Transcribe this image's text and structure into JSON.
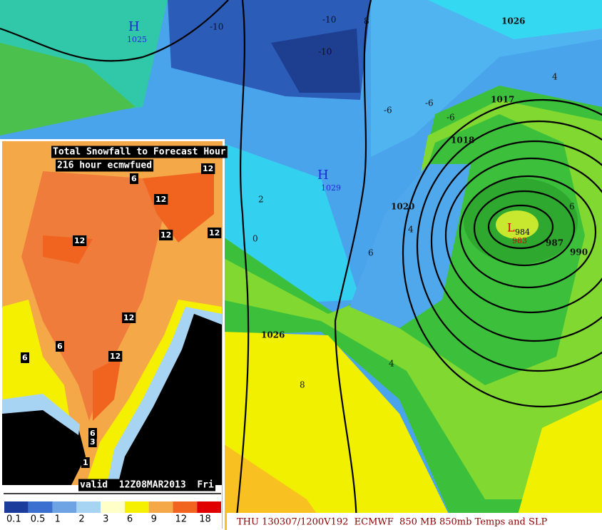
{
  "main_map": {
    "highs": [
      {
        "symbol": "H",
        "pressure": 1025
      },
      {
        "symbol": "H",
        "pressure": 1029
      }
    ],
    "low": {
      "symbol": "L",
      "pressures": [
        984,
        983
      ]
    },
    "isobar_labels": [
      1026,
      1017,
      1018,
      1020,
      1026,
      987,
      990
    ],
    "temp_labels": [
      -10,
      -10,
      -10,
      8,
      -6,
      -6,
      -6,
      4,
      2,
      0,
      4,
      6,
      6,
      8,
      4
    ],
    "footer": "THU 130307/1200V192  ECMWF  850 MB 850mb Temps and SLP"
  },
  "inset": {
    "title": "Total Snowfall to Forecast Hour",
    "subtitle": "216 hour ecmwfued",
    "contour_labels": [
      12,
      6,
      12,
      12,
      12,
      12,
      12,
      6,
      6,
      12,
      6,
      3,
      1
    ],
    "valid": "valid  12Z08MAR2013  Fri",
    "legend": {
      "labels": [
        0.1,
        0.5,
        1,
        2,
        3,
        6,
        9,
        12,
        18
      ],
      "colors": [
        "#1c3c9c",
        "#3c70d0",
        "#6ea4e4",
        "#a8d4f4",
        "#ffffc8",
        "#f4f000",
        "#f4a848",
        "#f06420",
        "#e00000"
      ]
    }
  }
}
